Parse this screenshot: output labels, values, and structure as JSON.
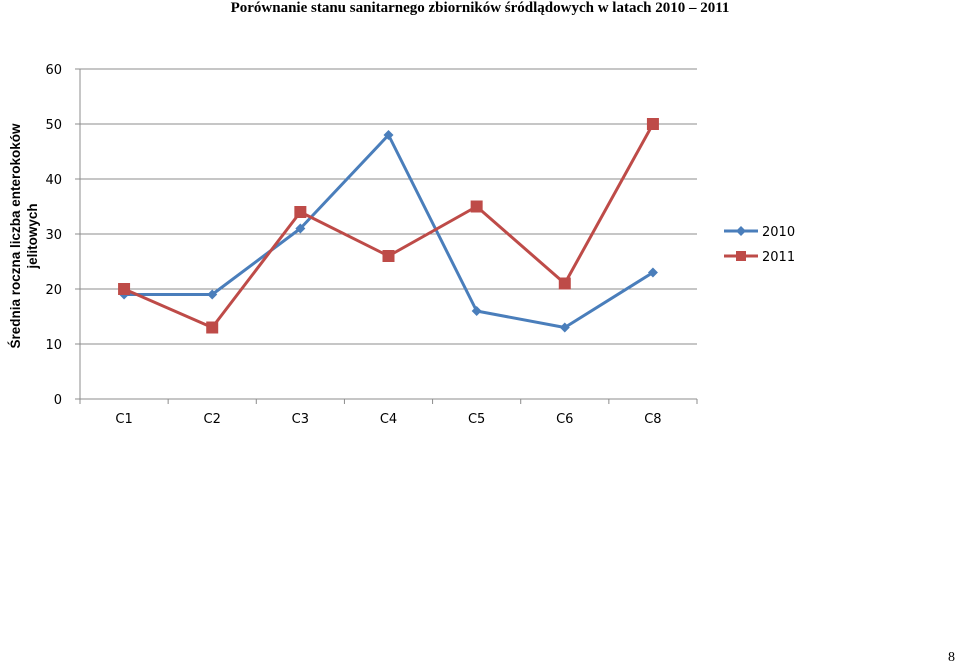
{
  "page": {
    "title": "Porównanie stanu sanitarnego zbiorników śródlądowych w latach 2010 – 2011",
    "page_number": "8"
  },
  "chart_data": {
    "type": "line",
    "title": "Porównanie stanu sanitarnego zbiorników śródlądowych w latach 2010 – 2011",
    "ylabel_line1": "Średnia roczna liczba enterokoków",
    "ylabel_line2": "jelitowych",
    "xlabel": "",
    "categories": [
      "C1",
      "C2",
      "C3",
      "C4",
      "C5",
      "C6",
      "C8"
    ],
    "ylim": [
      0,
      60
    ],
    "yticks": [
      0,
      10,
      20,
      30,
      40,
      50,
      60
    ],
    "grid": true,
    "legend_position": "right",
    "series": [
      {
        "name": "2010",
        "color": "#4a7ebb",
        "marker": "diamond",
        "values": [
          19,
          19,
          31,
          48,
          16,
          13,
          23
        ]
      },
      {
        "name": "2011",
        "color": "#be4b48",
        "marker": "square",
        "values": [
          20,
          13,
          34,
          26,
          35,
          21,
          50
        ]
      }
    ]
  }
}
